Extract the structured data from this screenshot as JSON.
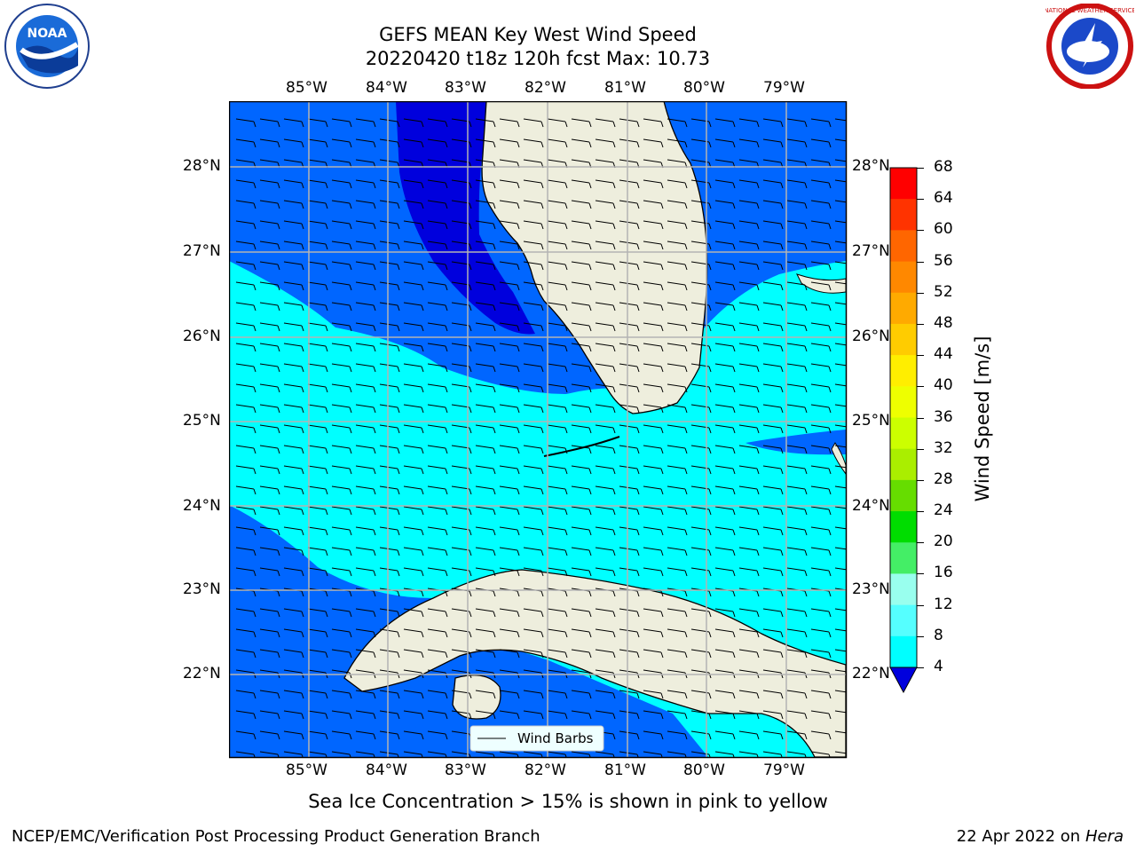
{
  "header": {
    "title_line1": "GEFS MEAN Key West Wind Speed",
    "title_line2": "20220420 t18z 120h fcst   Max: 10.73"
  },
  "logos": {
    "left": {
      "name": "noaa-logo",
      "text": "NOAA"
    },
    "right": {
      "name": "nws-logo",
      "text": "NATIONAL WEATHER SERVICE"
    }
  },
  "map": {
    "lon_labels": [
      "85°W",
      "84°W",
      "83°W",
      "82°W",
      "81°W",
      "80°W",
      "79°W"
    ],
    "lat_labels": [
      "28°N",
      "27°N",
      "26°N",
      "25°N",
      "24°N",
      "23°N",
      "22°N"
    ],
    "legend_label": "Wind Barbs",
    "colors": {
      "land": "#eeeedd",
      "band_4_8": "#0066ff",
      "band_0_4": "#0000dd",
      "band_8_12": "#00ffff",
      "coast": "#000000",
      "grid": "#b4b4b4"
    }
  },
  "colorbar": {
    "label": "Wind Speed [m/s]",
    "ticks": [
      "68",
      "64",
      "60",
      "56",
      "52",
      "48",
      "44",
      "40",
      "36",
      "32",
      "28",
      "24",
      "20",
      "16",
      "12",
      "8",
      "4"
    ],
    "colors": [
      "#ff0000",
      "#ff3300",
      "#ff6600",
      "#ff8800",
      "#ffaa00",
      "#ffcc00",
      "#ffee00",
      "#eeff00",
      "#ccff00",
      "#aaee00",
      "#66dd00",
      "#00dd00",
      "#44ee66",
      "#99ffee",
      "#55ffff",
      "#00ffff",
      "#0066ff"
    ],
    "underflow_color": "#0000dd"
  },
  "caption": "Sea Ice Concentration > 15% is shown in pink to yellow",
  "footer": {
    "left": "NCEP/EMC/Verification Post Processing Product Generation Branch",
    "right_date": "22 Apr 2022 on",
    "right_host": "Hera"
  }
}
